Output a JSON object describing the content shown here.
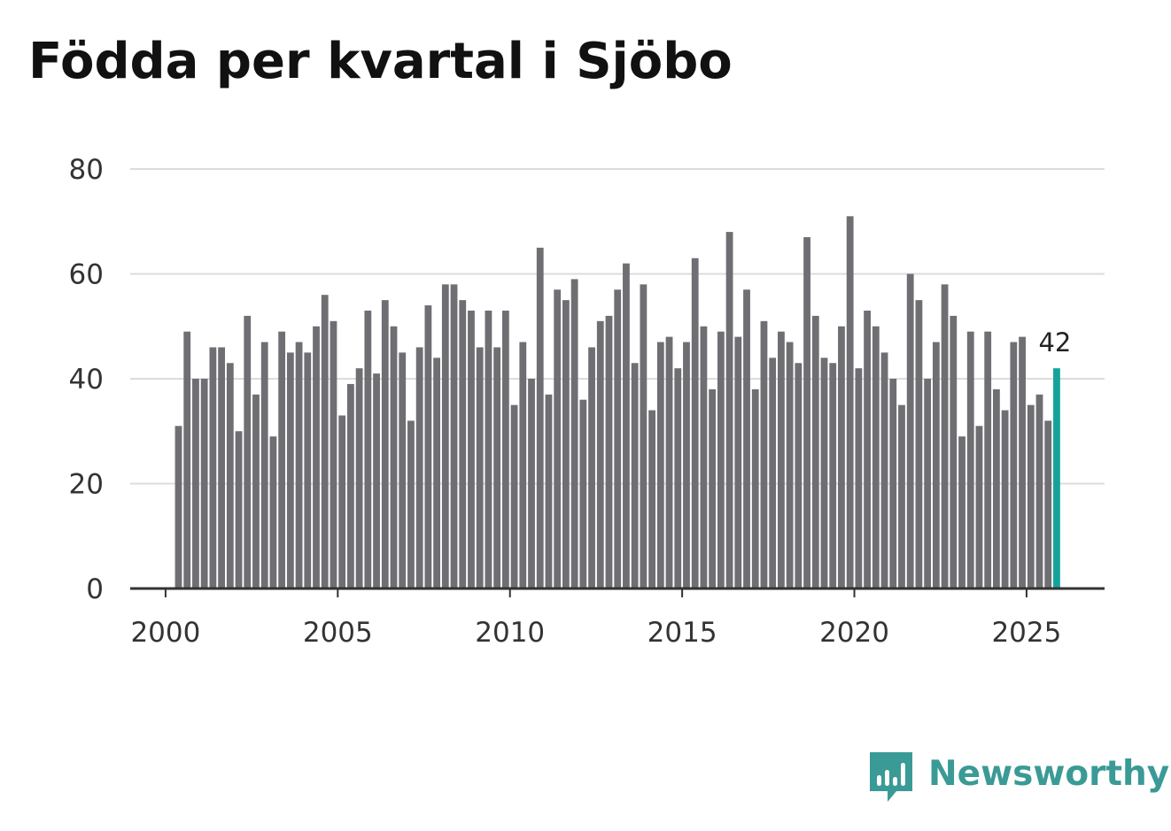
{
  "title": "Födda per kvartal i Sjöbo",
  "brand": {
    "name": "Newsworthy",
    "icon": "newsworthy-logo-icon",
    "color": "#3a9a96"
  },
  "colors": {
    "bar": "#6f6e73",
    "highlight": "#14a39a",
    "grid": "#dcdcdc",
    "axis": "#333333"
  },
  "chart_data": {
    "type": "bar",
    "title": "Födda per kvartal i Sjöbo",
    "xlabel": "",
    "ylabel": "",
    "ylim": [
      0,
      80
    ],
    "yticks": [
      "0",
      "20",
      "40",
      "60",
      "80"
    ],
    "xticks": [
      "2000",
      "2005",
      "2010",
      "2015",
      "2020",
      "2025"
    ],
    "grid": true,
    "start": "2000 Q1",
    "end": "2025 Q3",
    "values": [
      31,
      49,
      40,
      40,
      46,
      46,
      43,
      30,
      52,
      37,
      47,
      29,
      49,
      45,
      47,
      45,
      50,
      56,
      51,
      33,
      39,
      42,
      53,
      41,
      55,
      50,
      45,
      32,
      46,
      54,
      44,
      58,
      58,
      55,
      53,
      46,
      53,
      46,
      53,
      35,
      47,
      40,
      65,
      37,
      57,
      55,
      59,
      36,
      46,
      51,
      52,
      57,
      62,
      43,
      58,
      34,
      47,
      48,
      42,
      47,
      63,
      50,
      38,
      49,
      68,
      48,
      57,
      38,
      51,
      44,
      49,
      47,
      43,
      67,
      52,
      44,
      43,
      50,
      71,
      42,
      53,
      50,
      45,
      40,
      35,
      60,
      55,
      40,
      47,
      58,
      52,
      29,
      49,
      31,
      49,
      38,
      34,
      47,
      48,
      35,
      37,
      32,
      42
    ],
    "highlight": {
      "label": "42",
      "value": 42
    }
  }
}
